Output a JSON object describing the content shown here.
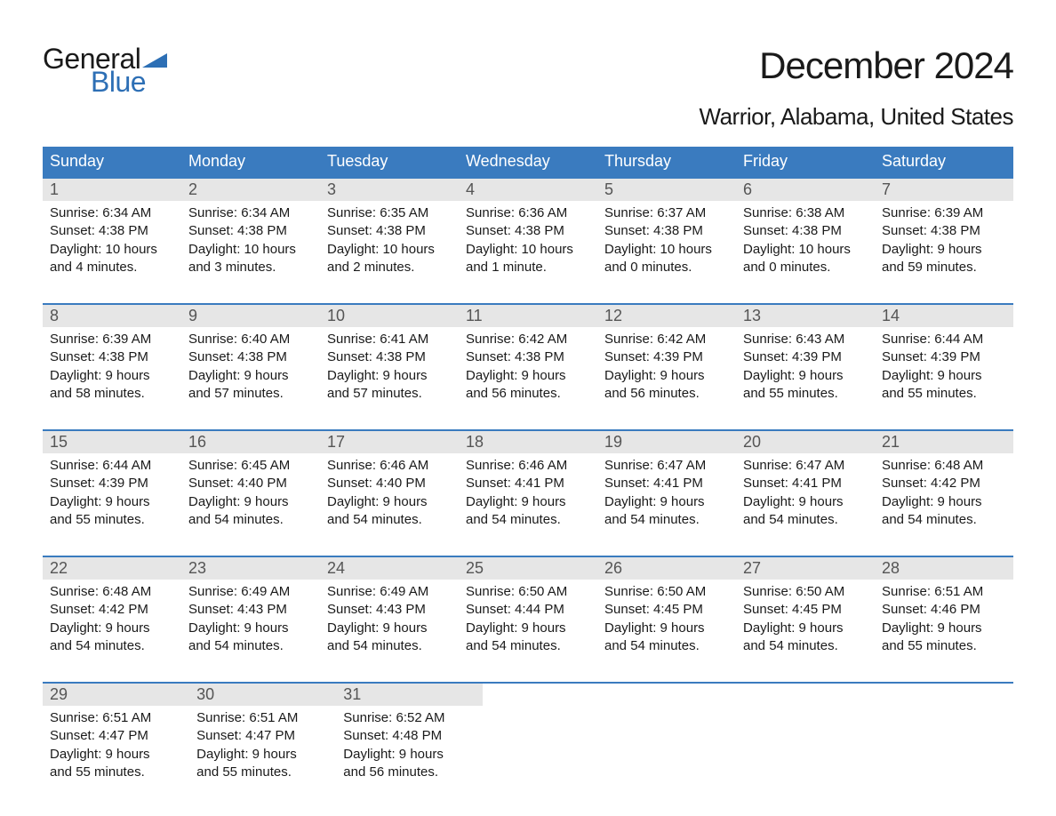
{
  "logo": {
    "text1": "General",
    "text2": "Blue",
    "flag_color": "#2d6fb5"
  },
  "title": "December 2024",
  "location": "Warrior, Alabama, United States",
  "colors": {
    "header_bg": "#3a7bbf",
    "header_text": "#ffffff",
    "daynum_bg": "#e6e6e6",
    "week_border": "#3a7bbf",
    "body_text": "#1a1a1a",
    "logo_blue": "#2d6fb5"
  },
  "days_of_week": [
    "Sunday",
    "Monday",
    "Tuesday",
    "Wednesday",
    "Thursday",
    "Friday",
    "Saturday"
  ],
  "weeks": [
    [
      {
        "n": "1",
        "sunrise": "Sunrise: 6:34 AM",
        "sunset": "Sunset: 4:38 PM",
        "d1": "Daylight: 10 hours",
        "d2": "and 4 minutes."
      },
      {
        "n": "2",
        "sunrise": "Sunrise: 6:34 AM",
        "sunset": "Sunset: 4:38 PM",
        "d1": "Daylight: 10 hours",
        "d2": "and 3 minutes."
      },
      {
        "n": "3",
        "sunrise": "Sunrise: 6:35 AM",
        "sunset": "Sunset: 4:38 PM",
        "d1": "Daylight: 10 hours",
        "d2": "and 2 minutes."
      },
      {
        "n": "4",
        "sunrise": "Sunrise: 6:36 AM",
        "sunset": "Sunset: 4:38 PM",
        "d1": "Daylight: 10 hours",
        "d2": "and 1 minute."
      },
      {
        "n": "5",
        "sunrise": "Sunrise: 6:37 AM",
        "sunset": "Sunset: 4:38 PM",
        "d1": "Daylight: 10 hours",
        "d2": "and 0 minutes."
      },
      {
        "n": "6",
        "sunrise": "Sunrise: 6:38 AM",
        "sunset": "Sunset: 4:38 PM",
        "d1": "Daylight: 10 hours",
        "d2": "and 0 minutes."
      },
      {
        "n": "7",
        "sunrise": "Sunrise: 6:39 AM",
        "sunset": "Sunset: 4:38 PM",
        "d1": "Daylight: 9 hours",
        "d2": "and 59 minutes."
      }
    ],
    [
      {
        "n": "8",
        "sunrise": "Sunrise: 6:39 AM",
        "sunset": "Sunset: 4:38 PM",
        "d1": "Daylight: 9 hours",
        "d2": "and 58 minutes."
      },
      {
        "n": "9",
        "sunrise": "Sunrise: 6:40 AM",
        "sunset": "Sunset: 4:38 PM",
        "d1": "Daylight: 9 hours",
        "d2": "and 57 minutes."
      },
      {
        "n": "10",
        "sunrise": "Sunrise: 6:41 AM",
        "sunset": "Sunset: 4:38 PM",
        "d1": "Daylight: 9 hours",
        "d2": "and 57 minutes."
      },
      {
        "n": "11",
        "sunrise": "Sunrise: 6:42 AM",
        "sunset": "Sunset: 4:38 PM",
        "d1": "Daylight: 9 hours",
        "d2": "and 56 minutes."
      },
      {
        "n": "12",
        "sunrise": "Sunrise: 6:42 AM",
        "sunset": "Sunset: 4:39 PM",
        "d1": "Daylight: 9 hours",
        "d2": "and 56 minutes."
      },
      {
        "n": "13",
        "sunrise": "Sunrise: 6:43 AM",
        "sunset": "Sunset: 4:39 PM",
        "d1": "Daylight: 9 hours",
        "d2": "and 55 minutes."
      },
      {
        "n": "14",
        "sunrise": "Sunrise: 6:44 AM",
        "sunset": "Sunset: 4:39 PM",
        "d1": "Daylight: 9 hours",
        "d2": "and 55 minutes."
      }
    ],
    [
      {
        "n": "15",
        "sunrise": "Sunrise: 6:44 AM",
        "sunset": "Sunset: 4:39 PM",
        "d1": "Daylight: 9 hours",
        "d2": "and 55 minutes."
      },
      {
        "n": "16",
        "sunrise": "Sunrise: 6:45 AM",
        "sunset": "Sunset: 4:40 PM",
        "d1": "Daylight: 9 hours",
        "d2": "and 54 minutes."
      },
      {
        "n": "17",
        "sunrise": "Sunrise: 6:46 AM",
        "sunset": "Sunset: 4:40 PM",
        "d1": "Daylight: 9 hours",
        "d2": "and 54 minutes."
      },
      {
        "n": "18",
        "sunrise": "Sunrise: 6:46 AM",
        "sunset": "Sunset: 4:41 PM",
        "d1": "Daylight: 9 hours",
        "d2": "and 54 minutes."
      },
      {
        "n": "19",
        "sunrise": "Sunrise: 6:47 AM",
        "sunset": "Sunset: 4:41 PM",
        "d1": "Daylight: 9 hours",
        "d2": "and 54 minutes."
      },
      {
        "n": "20",
        "sunrise": "Sunrise: 6:47 AM",
        "sunset": "Sunset: 4:41 PM",
        "d1": "Daylight: 9 hours",
        "d2": "and 54 minutes."
      },
      {
        "n": "21",
        "sunrise": "Sunrise: 6:48 AM",
        "sunset": "Sunset: 4:42 PM",
        "d1": "Daylight: 9 hours",
        "d2": "and 54 minutes."
      }
    ],
    [
      {
        "n": "22",
        "sunrise": "Sunrise: 6:48 AM",
        "sunset": "Sunset: 4:42 PM",
        "d1": "Daylight: 9 hours",
        "d2": "and 54 minutes."
      },
      {
        "n": "23",
        "sunrise": "Sunrise: 6:49 AM",
        "sunset": "Sunset: 4:43 PM",
        "d1": "Daylight: 9 hours",
        "d2": "and 54 minutes."
      },
      {
        "n": "24",
        "sunrise": "Sunrise: 6:49 AM",
        "sunset": "Sunset: 4:43 PM",
        "d1": "Daylight: 9 hours",
        "d2": "and 54 minutes."
      },
      {
        "n": "25",
        "sunrise": "Sunrise: 6:50 AM",
        "sunset": "Sunset: 4:44 PM",
        "d1": "Daylight: 9 hours",
        "d2": "and 54 minutes."
      },
      {
        "n": "26",
        "sunrise": "Sunrise: 6:50 AM",
        "sunset": "Sunset: 4:45 PM",
        "d1": "Daylight: 9 hours",
        "d2": "and 54 minutes."
      },
      {
        "n": "27",
        "sunrise": "Sunrise: 6:50 AM",
        "sunset": "Sunset: 4:45 PM",
        "d1": "Daylight: 9 hours",
        "d2": "and 54 minutes."
      },
      {
        "n": "28",
        "sunrise": "Sunrise: 6:51 AM",
        "sunset": "Sunset: 4:46 PM",
        "d1": "Daylight: 9 hours",
        "d2": "and 55 minutes."
      }
    ],
    [
      {
        "n": "29",
        "sunrise": "Sunrise: 6:51 AM",
        "sunset": "Sunset: 4:47 PM",
        "d1": "Daylight: 9 hours",
        "d2": "and 55 minutes."
      },
      {
        "n": "30",
        "sunrise": "Sunrise: 6:51 AM",
        "sunset": "Sunset: 4:47 PM",
        "d1": "Daylight: 9 hours",
        "d2": "and 55 minutes."
      },
      {
        "n": "31",
        "sunrise": "Sunrise: 6:52 AM",
        "sunset": "Sunset: 4:48 PM",
        "d1": "Daylight: 9 hours",
        "d2": "and 56 minutes."
      },
      null,
      null,
      null,
      null
    ]
  ]
}
